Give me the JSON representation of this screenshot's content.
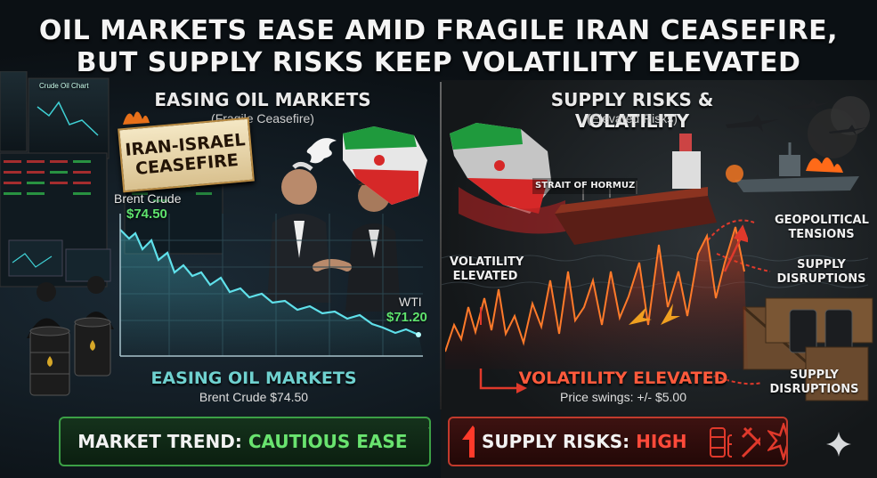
{
  "headline": {
    "line1": "OIL MARKETS EASE AMID FRAGILE IRAN CEASEFIRE,",
    "line2": "BUT SUPPLY RISKS KEEP VOLATILITY ELEVATED"
  },
  "left": {
    "title": "EASING OIL MARKETS",
    "subtitle": "(Fragile Ceasefire)",
    "banner": [
      "IRAN-ISRAEL",
      "CEASEFIRE"
    ],
    "monitor_caption": "Crude Oil Chart",
    "brent_label": "Brent Crude",
    "brent_price": "$74.50",
    "wti_label": "WTI",
    "wti_price": "$71.20",
    "bottom_title": "EASING OIL MARKETS",
    "bottom_sub": "Brent Crude $74.50"
  },
  "right": {
    "title": "SUPPLY RISKS & VOLATILITY",
    "subtitle": "(Elevated Risks)",
    "strait_label": "STRAIT OF HORMUZ",
    "volatility_label": [
      "VOLATILITY",
      "ELEVATED"
    ],
    "geo_label": [
      "GEOPOLITICAL",
      "TENSIONS"
    ],
    "supply_label_1": [
      "SUPPLY",
      "DISRUPTIONS"
    ],
    "supply_label_2": [
      "SUPPLY",
      "DISRUPTIONS"
    ],
    "bottom_title": "VOLATILITY ELEVATED",
    "bottom_sub": "Price swings: +/- $5.00"
  },
  "status_left": {
    "key": "MARKET TREND: ",
    "value": "CAUTIOUS EASE"
  },
  "status_right": {
    "key": "SUPPLY RISKS: ",
    "value": "HIGH"
  },
  "colors": {
    "green": "#5fe36e",
    "red": "#ff4a3a",
    "teal": "#6fd1cf"
  },
  "icons": [
    "down-arrow-icon",
    "declining-chart-icon",
    "up-arrow-icon",
    "oil-barrels-icon",
    "crossed-guns-icon",
    "explosion-icon",
    "sparkle-icon",
    "dove-icon"
  ]
}
